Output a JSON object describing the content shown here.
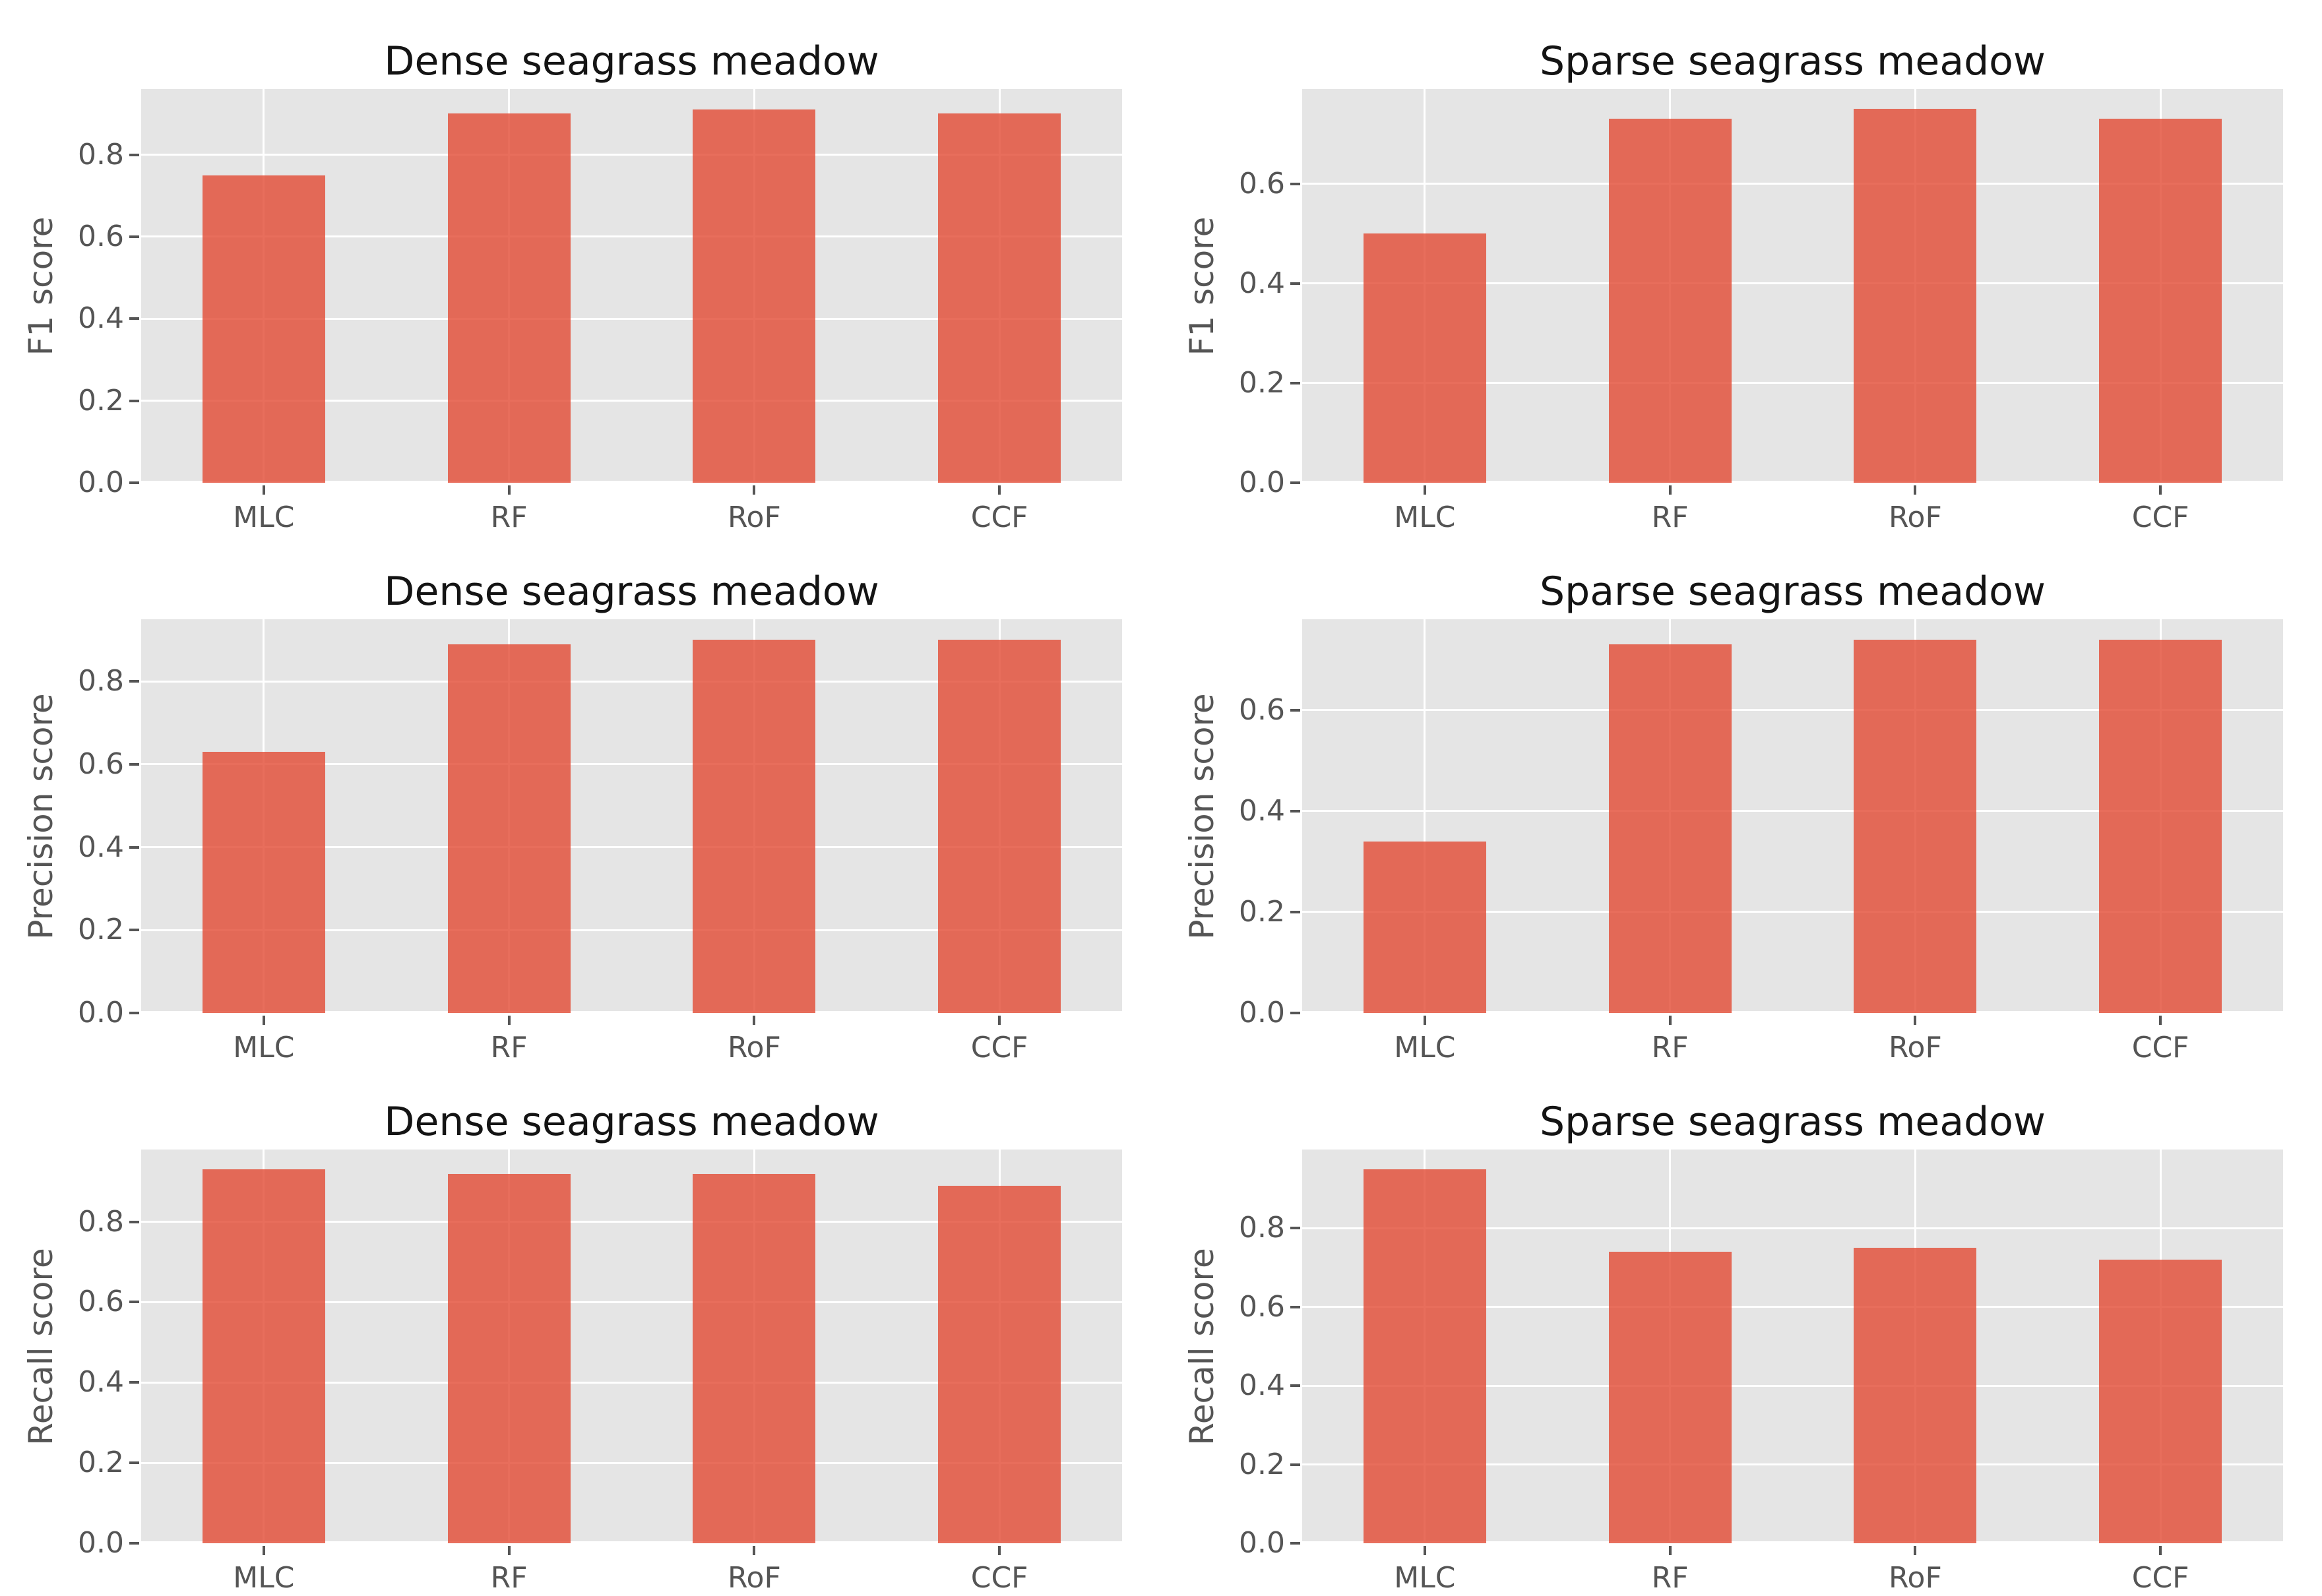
{
  "figure": {
    "background": "#ffffff"
  },
  "style": {
    "bar_color": "#E24A33",
    "bar_alpha": 0.8,
    "plot_bg": "#E5E5E5",
    "grid_color": "#FFFFFF",
    "tick_text_color": "#555555",
    "title_color": "#141414"
  },
  "chart_data": [
    {
      "type": "bar",
      "title": "Dense seagrass meadow",
      "ylabel": "F1 score",
      "xlabel": "",
      "categories": [
        "MLC",
        "RF",
        "RoF",
        "CCF"
      ],
      "values": [
        0.75,
        0.9,
        0.91,
        0.9
      ],
      "ytick_values": [
        0.0,
        0.2,
        0.4,
        0.6,
        0.8
      ],
      "ytick_labels": [
        "0.0",
        "0.2",
        "0.4",
        "0.6",
        "0.8"
      ],
      "ylim": [
        0,
        0.96
      ],
      "grid": true,
      "legend": "none",
      "bar_width_fraction": 0.5
    },
    {
      "type": "bar",
      "title": "Sparse seagrass meadow",
      "ylabel": "F1 score",
      "xlabel": "",
      "categories": [
        "MLC",
        "RF",
        "RoF",
        "CCF"
      ],
      "values": [
        0.5,
        0.73,
        0.75,
        0.73
      ],
      "ytick_values": [
        0.0,
        0.2,
        0.4,
        0.6
      ],
      "ytick_labels": [
        "0.0",
        "0.2",
        "0.4",
        "0.6"
      ],
      "ylim": [
        0,
        0.79
      ],
      "grid": true,
      "legend": "none",
      "bar_width_fraction": 0.5
    },
    {
      "type": "bar",
      "title": "Dense seagrass meadow",
      "ylabel": "Precision score",
      "xlabel": "",
      "categories": [
        "MLC",
        "RF",
        "RoF",
        "CCF"
      ],
      "values": [
        0.63,
        0.89,
        0.9,
        0.9
      ],
      "ytick_values": [
        0.0,
        0.2,
        0.4,
        0.6,
        0.8
      ],
      "ytick_labels": [
        "0.0",
        "0.2",
        "0.4",
        "0.6",
        "0.8"
      ],
      "ylim": [
        0,
        0.95
      ],
      "grid": true,
      "legend": "none",
      "bar_width_fraction": 0.5
    },
    {
      "type": "bar",
      "title": "Sparse seagrass meadow",
      "ylabel": "Precision score",
      "xlabel": "",
      "categories": [
        "MLC",
        "RF",
        "RoF",
        "CCF"
      ],
      "values": [
        0.34,
        0.73,
        0.74,
        0.74
      ],
      "ytick_values": [
        0.0,
        0.2,
        0.4,
        0.6
      ],
      "ytick_labels": [
        "0.0",
        "0.2",
        "0.4",
        "0.6"
      ],
      "ylim": [
        0,
        0.78
      ],
      "grid": true,
      "legend": "none",
      "bar_width_fraction": 0.5
    },
    {
      "type": "bar",
      "title": "Dense seagrass meadow",
      "ylabel": "Recall score",
      "xlabel": "",
      "categories": [
        "MLC",
        "RF",
        "RoF",
        "CCF"
      ],
      "values": [
        0.93,
        0.92,
        0.92,
        0.89
      ],
      "ytick_values": [
        0.0,
        0.2,
        0.4,
        0.6,
        0.8
      ],
      "ytick_labels": [
        "0.0",
        "0.2",
        "0.4",
        "0.6",
        "0.8"
      ],
      "ylim": [
        0,
        0.98
      ],
      "grid": true,
      "legend": "none",
      "bar_width_fraction": 0.5
    },
    {
      "type": "bar",
      "title": "Sparse seagrass meadow",
      "ylabel": "Recall score",
      "xlabel": "",
      "categories": [
        "MLC",
        "RF",
        "RoF",
        "CCF"
      ],
      "values": [
        0.95,
        0.74,
        0.75,
        0.72
      ],
      "ytick_values": [
        0.0,
        0.2,
        0.4,
        0.6,
        0.8
      ],
      "ytick_labels": [
        "0.0",
        "0.2",
        "0.4",
        "0.6",
        "0.8"
      ],
      "ylim": [
        0,
        1.0
      ],
      "grid": true,
      "legend": "none",
      "bar_width_fraction": 0.5
    }
  ]
}
